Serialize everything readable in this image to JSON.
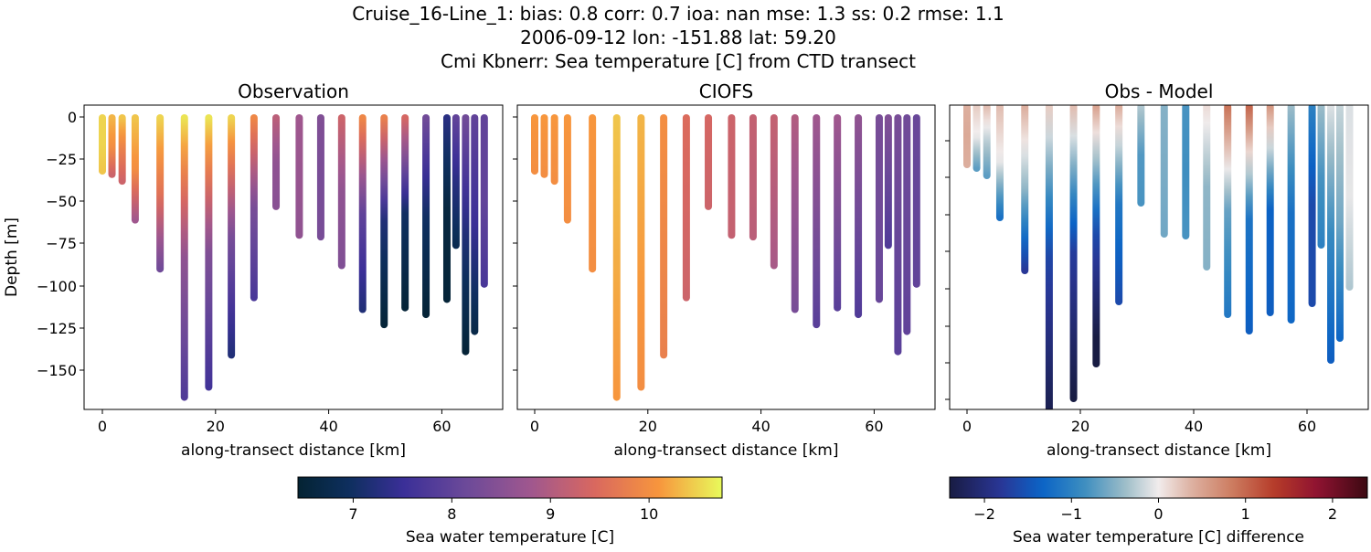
{
  "title_lines": [
    "Cruise_16-Line_1: bias: 0.8  corr: 0.7  ioa: nan  mse: 1.3  ss: 0.2  rmse: 1.1",
    "2006-09-12 lon: -151.88 lat: 59.20",
    "Cmi Kbnerr: Sea temperature [C] from CTD transect"
  ],
  "chart_data": {
    "type": "scatter",
    "panels": [
      {
        "title": "Observation",
        "xlabel": "along-transect distance [km]",
        "ylabel": "Depth [m]",
        "field": "obs"
      },
      {
        "title": "CIOFS",
        "xlabel": "along-transect distance [km]",
        "ylabel": "",
        "field": "model"
      },
      {
        "title": "Obs - Model",
        "xlabel": "along-transect distance [km]",
        "ylabel": "",
        "field": "diff"
      }
    ],
    "xlim": [
      -3,
      71
    ],
    "ylim": [
      -170,
      7
    ],
    "x_ticks": [
      "0",
      "20",
      "40",
      "60"
    ],
    "y_ticks": [
      "0",
      "−25",
      "−50",
      "−75",
      "−100",
      "−125",
      "−150"
    ],
    "colorbars": [
      {
        "label": "Sea water temperature [C]",
        "range": [
          6.44,
          10.74
        ],
        "ticks": [
          "7",
          "8",
          "9",
          "10"
        ],
        "tick_values": [
          7,
          8,
          9,
          10
        ],
        "colormap": "thermal"
      },
      {
        "label": "Sea water temperature [C] difference",
        "range": [
          -2.4,
          2.4
        ],
        "ticks": [
          "−2",
          "−1",
          "0",
          "1",
          "2"
        ],
        "tick_values": [
          -2,
          -1,
          0,
          1,
          2
        ],
        "colormap": "balance"
      }
    ],
    "stations": [
      {
        "distance": 0.0,
        "max_depth": 32,
        "obs": [
          10.5,
          10.5,
          10.4
        ],
        "model": [
          10.1,
          10.0
        ]
      },
      {
        "distance": 1.7,
        "max_depth": 34,
        "obs": [
          10.3,
          10.0,
          9.3
        ],
        "model": [
          10.1,
          10.0
        ]
      },
      {
        "distance": 3.5,
        "max_depth": 38,
        "obs": [
          10.4,
          9.8,
          9.3
        ],
        "model": [
          10.1,
          10.0
        ]
      },
      {
        "distance": 5.8,
        "max_depth": 61,
        "obs": [
          10.4,
          10.0,
          8.8
        ],
        "model": [
          10.1,
          10.0
        ]
      },
      {
        "distance": 10.2,
        "max_depth": 90,
        "obs": [
          10.5,
          9.6,
          8.2
        ],
        "model": [
          10.1,
          10.0
        ]
      },
      {
        "distance": 14.5,
        "max_depth": 166,
        "obs": [
          10.6,
          8.6,
          7.8
        ],
        "model": [
          10.4,
          10.1
        ]
      },
      {
        "distance": 18.8,
        "max_depth": 160,
        "obs": [
          10.6,
          8.4,
          7.6
        ],
        "model": [
          10.3,
          10.0
        ]
      },
      {
        "distance": 22.8,
        "max_depth": 141,
        "obs": [
          10.5,
          8.3,
          7.2
        ],
        "model": [
          10.0,
          9.8
        ]
      },
      {
        "distance": 26.8,
        "max_depth": 107,
        "obs": [
          9.9,
          8.3,
          7.7
        ],
        "model": [
          9.5,
          9.3
        ]
      },
      {
        "distance": 30.7,
        "max_depth": 53,
        "obs": [
          9.1,
          8.6,
          8.5
        ],
        "model": [
          9.4,
          9.3
        ]
      },
      {
        "distance": 34.8,
        "max_depth": 70,
        "obs": [
          8.8,
          8.7,
          8.6
        ],
        "model": [
          9.3,
          9.2
        ]
      },
      {
        "distance": 38.6,
        "max_depth": 71,
        "obs": [
          8.4,
          8.3,
          8.3
        ],
        "model": [
          9.2,
          9.1
        ]
      },
      {
        "distance": 42.3,
        "max_depth": 88,
        "obs": [
          9.3,
          8.6,
          8.4
        ],
        "model": [
          9.2,
          8.9
        ]
      },
      {
        "distance": 46.0,
        "max_depth": 114,
        "obs": [
          9.9,
          8.0,
          7.2
        ],
        "model": [
          9.0,
          8.3
        ]
      },
      {
        "distance": 49.8,
        "max_depth": 123,
        "obs": [
          9.8,
          7.2,
          6.5
        ],
        "model": [
          8.8,
          7.9
        ]
      },
      {
        "distance": 53.5,
        "max_depth": 113,
        "obs": [
          9.4,
          7.0,
          6.5
        ],
        "model": [
          8.8,
          7.9
        ]
      },
      {
        "distance": 57.2,
        "max_depth": 117,
        "obs": [
          8.2,
          7.0,
          6.5
        ],
        "model": [
          8.6,
          7.8
        ]
      },
      {
        "distance": 60.9,
        "max_depth": 108,
        "obs": [
          7.3,
          6.6,
          6.5
        ],
        "model": [
          8.3,
          8.1
        ]
      },
      {
        "distance": 62.5,
        "max_depth": 76,
        "obs": [
          8.0,
          7.3,
          6.8
        ],
        "model": [
          8.4,
          7.8
        ]
      },
      {
        "distance": 64.2,
        "max_depth": 139,
        "obs": [
          8.2,
          7.2,
          6.5
        ],
        "model": [
          8.3,
          7.9
        ]
      },
      {
        "distance": 65.8,
        "max_depth": 127,
        "obs": [
          8.0,
          7.5,
          6.7
        ],
        "model": [
          8.2,
          8.0
        ]
      },
      {
        "distance": 67.5,
        "max_depth": 99,
        "obs": [
          8.0,
          8.0,
          7.7
        ],
        "model": [
          8.1,
          8.0
        ]
      }
    ]
  }
}
